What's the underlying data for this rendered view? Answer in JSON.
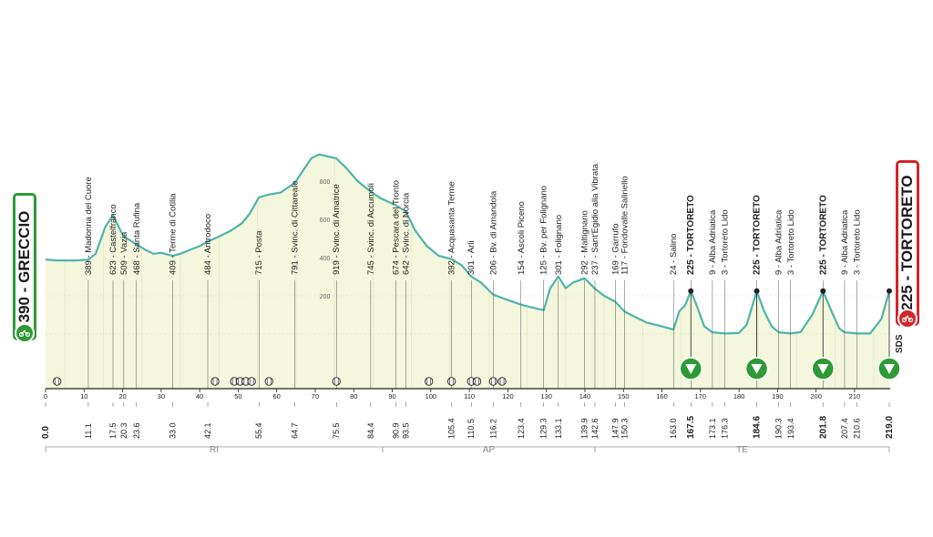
{
  "start": {
    "label": "390 - GRECCIO"
  },
  "finish": {
    "label": "225 - TORTORETO",
    "sds": "SDS"
  },
  "icons": {
    "start": "cyclist-icon",
    "finish": "cyclist-icon",
    "sprint": "descent-marker-icon",
    "crossing": "railway-crossing-icon"
  },
  "colors": {
    "profile_line": "#4fb3ae",
    "profile_fill": "#f4f7dc",
    "axis": "#222222",
    "start": "#2d9a35",
    "finish": "#d0262a",
    "sprint": "#2d9a35"
  },
  "chart_data": {
    "type": "area",
    "title": "",
    "xlabel": "",
    "ylabel": "",
    "xlim": [
      0,
      219
    ],
    "ylim": [
      0,
      1000
    ],
    "x_ticks": [
      0,
      10,
      20,
      30,
      40,
      50,
      60,
      70,
      80,
      90,
      100,
      110,
      120,
      130,
      140,
      150,
      160,
      170,
      180,
      190,
      200,
      210
    ],
    "altitude_ticks": [
      "200",
      "400",
      "600",
      "800"
    ],
    "profile": [
      [
        0,
        390
      ],
      [
        3,
        385
      ],
      [
        8,
        385
      ],
      [
        11.1,
        389
      ],
      [
        13,
        420
      ],
      [
        15.5,
        560
      ],
      [
        17.5,
        623
      ],
      [
        19,
        560
      ],
      [
        20.3,
        509
      ],
      [
        22,
        490
      ],
      [
        23.6,
        468
      ],
      [
        26,
        440
      ],
      [
        28,
        420
      ],
      [
        30,
        425
      ],
      [
        33,
        409
      ],
      [
        35,
        420
      ],
      [
        38,
        445
      ],
      [
        40,
        460
      ],
      [
        42.1,
        484
      ],
      [
        45,
        510
      ],
      [
        48,
        540
      ],
      [
        51,
        580
      ],
      [
        53,
        630
      ],
      [
        55.4,
        715
      ],
      [
        58,
        730
      ],
      [
        61,
        740
      ],
      [
        64.7,
        791
      ],
      [
        67,
        860
      ],
      [
        69,
        920
      ],
      [
        71,
        940
      ],
      [
        73,
        930
      ],
      [
        75.5,
        919
      ],
      [
        78,
        870
      ],
      [
        81,
        800
      ],
      [
        84.4,
        745
      ],
      [
        87,
        710
      ],
      [
        90.9,
        674
      ],
      [
        93.5,
        642
      ],
      [
        96,
        540
      ],
      [
        99,
        460
      ],
      [
        102,
        410
      ],
      [
        105.4,
        392
      ],
      [
        108,
        360
      ],
      [
        110.5,
        301
      ],
      [
        113,
        270
      ],
      [
        116.2,
        206
      ],
      [
        119,
        185
      ],
      [
        123.4,
        154
      ],
      [
        126,
        140
      ],
      [
        129.3,
        125
      ],
      [
        131,
        240
      ],
      [
        133.1,
        301
      ],
      [
        135,
        240
      ],
      [
        137,
        270
      ],
      [
        139.9,
        292
      ],
      [
        142.6,
        237
      ],
      [
        145,
        200
      ],
      [
        147.9,
        169
      ],
      [
        150.3,
        117
      ],
      [
        153,
        90
      ],
      [
        156,
        60
      ],
      [
        160,
        40
      ],
      [
        163,
        24
      ],
      [
        164.5,
        120
      ],
      [
        166,
        150
      ],
      [
        167.5,
        225
      ],
      [
        169,
        150
      ],
      [
        171,
        40
      ],
      [
        173.1,
        9
      ],
      [
        176.3,
        3
      ],
      [
        180,
        5
      ],
      [
        182,
        50
      ],
      [
        184.6,
        225
      ],
      [
        186.5,
        120
      ],
      [
        188.5,
        40
      ],
      [
        190.3,
        9
      ],
      [
        193.4,
        3
      ],
      [
        196,
        10
      ],
      [
        199,
        100
      ],
      [
        201.8,
        225
      ],
      [
        204,
        120
      ],
      [
        206,
        30
      ],
      [
        207.4,
        9
      ],
      [
        210.6,
        3
      ],
      [
        214,
        3
      ],
      [
        217,
        80
      ],
      [
        219,
        225
      ]
    ],
    "km_labels": [
      "0.0",
      "11.1",
      "17.5",
      "20.3",
      "23.6",
      "33.0",
      "42.1",
      "55.4",
      "64.7",
      "75.5",
      "84.4",
      "90.9",
      "93.5",
      "105.4",
      "110.5",
      "116.2",
      "123.4",
      "129.3",
      "133.1",
      "139.9",
      "142.6",
      "147.9",
      "150.3",
      "163.0",
      "167.5",
      "173.1",
      "176.3",
      "184.6",
      "190.3",
      "193.4",
      "201.8",
      "207.4",
      "210.6",
      "219.0"
    ],
    "bold_km": [
      "0.0",
      "167.5",
      "184.6",
      "201.8",
      "219.0"
    ],
    "places": [
      {
        "km": 11.1,
        "label": "389 - Madonna del Cuore"
      },
      {
        "km": 17.5,
        "label": "623 - Castelfranco"
      },
      {
        "km": 20.3,
        "label": "509 - Vazia"
      },
      {
        "km": 23.6,
        "label": "468 - Santa Rufina"
      },
      {
        "km": 33.0,
        "label": "409 - Terme di Cotilia"
      },
      {
        "km": 42.1,
        "label": "484 - Antrodoco"
      },
      {
        "km": 55.4,
        "label": "715 - Posta"
      },
      {
        "km": 64.7,
        "label": "791 - Svinc. di Cittareale"
      },
      {
        "km": 75.5,
        "label": "919 - Svinc. di Amatrice"
      },
      {
        "km": 84.4,
        "label": "745 - Svinc. di Accumoli"
      },
      {
        "km": 90.9,
        "label": "674 - Pescara del Tronto"
      },
      {
        "km": 93.5,
        "label": "642 - Svinc. di Norcia"
      },
      {
        "km": 105.4,
        "label": "392 - Acquasanta Terme"
      },
      {
        "km": 110.5,
        "label": "301 - Arli"
      },
      {
        "km": 116.2,
        "label": "206 - Bv. di Amandola"
      },
      {
        "km": 123.4,
        "label": "154 - Ascoli Piceno"
      },
      {
        "km": 129.3,
        "label": "125 - Bv. per Folignano"
      },
      {
        "km": 133.1,
        "label": "301 - Folignano"
      },
      {
        "km": 139.9,
        "label": "292 - Maltignano"
      },
      {
        "km": 142.6,
        "label": "237 - Sant'Egidio alla Vibrata"
      },
      {
        "km": 147.9,
        "label": "169 - Garrufo"
      },
      {
        "km": 150.3,
        "label": "117 - Fondovalle Salinello"
      },
      {
        "km": 163.0,
        "label": "24 - Salino"
      },
      {
        "km": 167.5,
        "label": "225 - TORTORETO",
        "bold": true
      },
      {
        "km": 173.1,
        "label": "9 - Alba Adriatica"
      },
      {
        "km": 176.3,
        "label": "3 - Tortoreto Lido"
      },
      {
        "km": 184.6,
        "label": "225 - TORTORETO",
        "bold": true
      },
      {
        "km": 190.3,
        "label": "9 - Alba Adriatica"
      },
      {
        "km": 193.4,
        "label": "3 - Tortoreto Lido"
      },
      {
        "km": 201.8,
        "label": "225 - TORTORETO",
        "bold": true
      },
      {
        "km": 207.4,
        "label": "9 - Alba Adriatica"
      },
      {
        "km": 210.6,
        "label": "3 - Tortoreto Lido"
      }
    ],
    "sprints_km": [
      167.5,
      184.6,
      201.8,
      219.0
    ],
    "crossings_km": [
      3,
      44,
      49,
      50.5,
      52,
      53.5,
      58,
      75.5,
      99.5,
      105.4,
      110.5,
      112,
      116.2,
      118.5
    ],
    "provinces": [
      {
        "name": "RI",
        "from": 0,
        "to": 87.5
      },
      {
        "name": "AP",
        "from": 87.5,
        "to": 142.6
      },
      {
        "name": "TE",
        "from": 142.6,
        "to": 219
      }
    ]
  }
}
